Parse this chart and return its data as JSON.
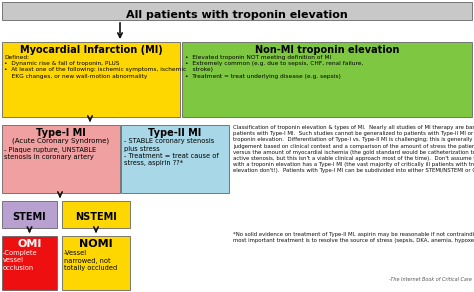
{
  "title": "All patients with troponin elevation",
  "title_bg": "#c8c8c8",
  "title_color": "#000000",
  "mi_label": "Myocardial Infarction (MI)",
  "mi_color": "#ffd700",
  "mi_content": "Defined:\n•  Dynamic rise & fall of troponin, PLUS\n•  At least one of the following: ischemic symptoms, ischemic\n    EKG changes, or new wall-motion abnormality",
  "non_mi_label": "Non-MI troponin elevation",
  "non_mi_color": "#7dc840",
  "non_mi_content": "•  Elevated troponin NOT meeting definition of MI\n•  Extremely common (e.g. due to sepsis, CHF, renal failure,\n    stroke)\n•  Treatment = treat underlying disease (e.g. sepsis)",
  "type1_label": "Type-I MI",
  "type1_sub": "(Acute Coronary Syndrome)",
  "type1_color": "#f0a0a0",
  "type1_content": "- Plaque rupture, UNSTABLE\nstenosis in coronary artery",
  "type2_label": "Type-II MI",
  "type2_color": "#a8d8e8",
  "type2_content": "- STABLE coronary stenosis\nplus stress\n- Treatment = treat cause of\nstress, aspirin ??*",
  "stemi_label": "STEMI",
  "stemi_color": "#b8a0d0",
  "nstemi_label": "NSTEMI",
  "nstemi_color": "#ffd700",
  "omi_label": "OMI",
  "omi_color": "#ee1010",
  "omi_text_color": "#ffffff",
  "omi_content": "-Complete\nvessel\nocclusion",
  "nomi_label": "NOMI",
  "nomi_color": "#ffd700",
  "nomi_text_color": "#000000",
  "nomi_content": "-Vessel\nnarrowed, not\ntotally occluded",
  "body_text": "Classification of troponin elevation & types of MI.  Nearly all studies of MI therapy are based on\npatients with Type-I MI.  Such studies cannot be generalized to patients with Type-II MI or non-MI\ntroponin elevation.  Differentiation of Type-I vs. Type-II MI is challenging; this is generally a clinical\njudgement based on clinical context and a comparison of the amount of stress the patient has endured\nversus the amount of myocardial ischemia (the gold standard would be catheterization to look for\nactive stenosis, but this isn't a viable clinical approach most of the time).  Don't assume that any patient\nwith a troponin elevation has a Type-I MI (the vast majority of critically ill patients with troponin\nelevation don't!).  Patients with Type-I MI can be subdivided into either STEMI/NSTEMI or OMI/NOMI.",
  "footnote": "*No solid evidence on treatment of Type-II MI, aspirin may be reasonable if not contraindicated. The\nmost important treatment is to resolve the source of stress (sepsis, DKA, anemia, hypoxemia, etc.).",
  "source": "-The Internet Book of Critical Care",
  "bg_color": "#ffffff",
  "edge_color": "#666666",
  "arrow_color": "#111111"
}
